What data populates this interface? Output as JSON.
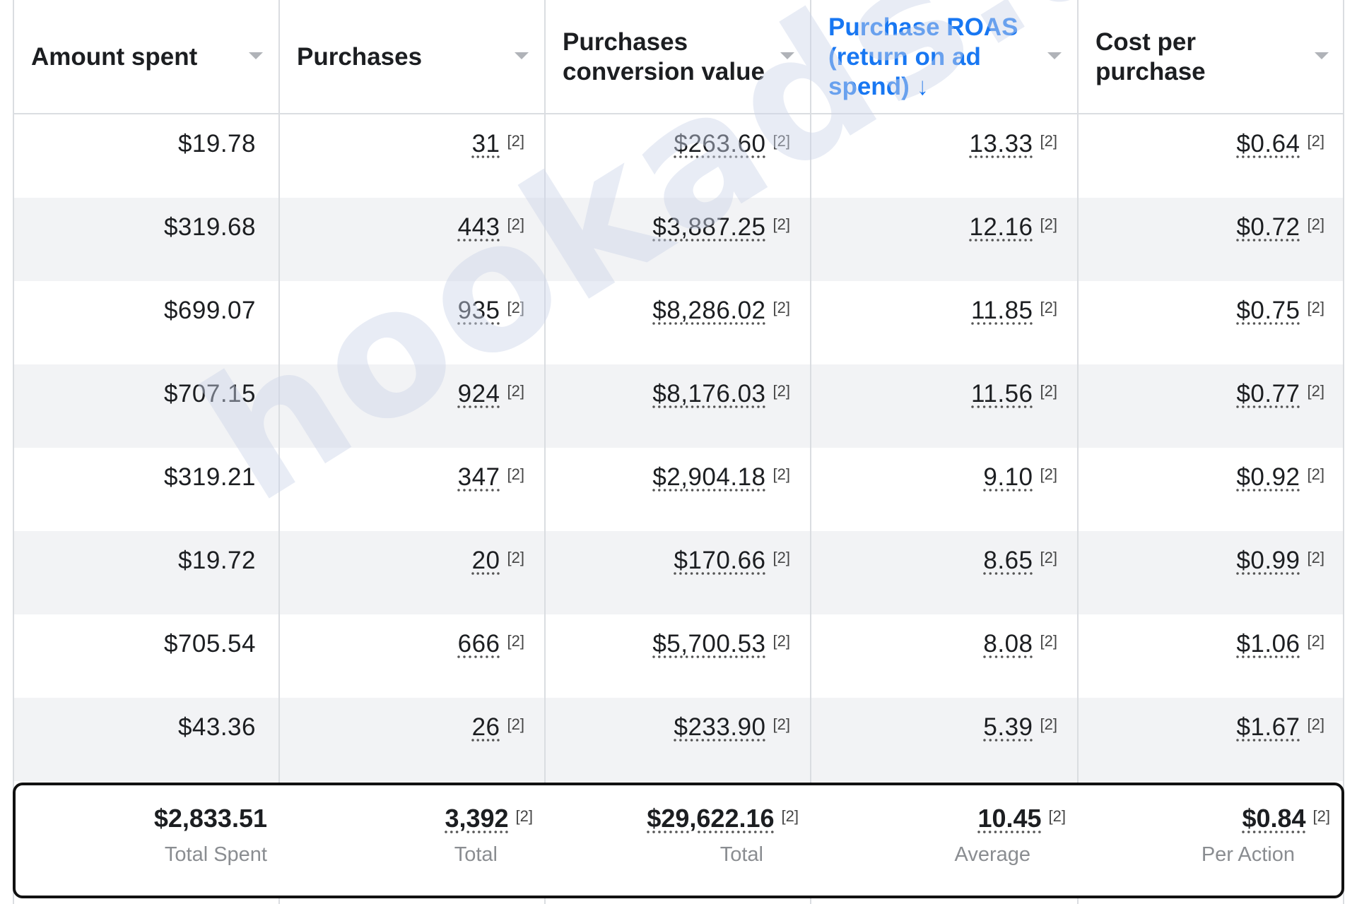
{
  "columns": [
    {
      "label": "Amount spent",
      "active": false
    },
    {
      "label": "Purchases",
      "active": false
    },
    {
      "label": "Purchases conversion value",
      "active": false
    },
    {
      "label": "Purchase ROAS (return on ad spend) ↓",
      "active": true
    },
    {
      "label": "Cost per purchase",
      "active": false
    }
  ],
  "footnote": "[2]",
  "rows": [
    [
      "$19.78",
      "31",
      "$263.60",
      "13.33",
      "$0.64"
    ],
    [
      "$319.68",
      "443",
      "$3,887.25",
      "12.16",
      "$0.72"
    ],
    [
      "$699.07",
      "935",
      "$8,286.02",
      "11.85",
      "$0.75"
    ],
    [
      "$707.15",
      "924",
      "$8,176.03",
      "11.56",
      "$0.77"
    ],
    [
      "$319.21",
      "347",
      "$2,904.18",
      "9.10",
      "$0.92"
    ],
    [
      "$19.72",
      "20",
      "$170.66",
      "8.65",
      "$0.99"
    ],
    [
      "$705.54",
      "666",
      "$5,700.53",
      "8.08",
      "$1.06"
    ],
    [
      "$43.36",
      "26",
      "$233.90",
      "5.39",
      "$1.67"
    ]
  ],
  "totals": [
    {
      "value": "$2,833.51",
      "label": "Total Spent"
    },
    {
      "value": "3,392",
      "label": "Total"
    },
    {
      "value": "$29,622.16",
      "label": "Total"
    },
    {
      "value": "10.45",
      "label": "Average"
    },
    {
      "value": "$0.84",
      "label": "Per Action"
    }
  ],
  "watermark": "hookads.ai",
  "colors": {
    "accent": "#1877f2",
    "alt_row": "#f2f3f5",
    "grid": "#dadde1",
    "text": "#1c1e21",
    "muted": "#8a8d91"
  }
}
